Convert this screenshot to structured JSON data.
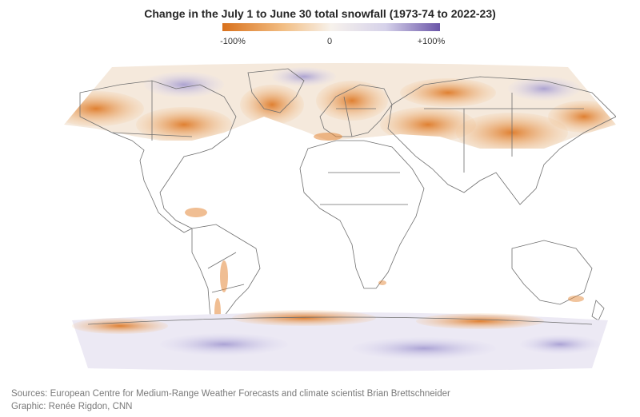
{
  "title": "Change in the July 1 to June 30 total snowfall (1973-74 to 2022-23)",
  "legend": {
    "min_label": "-100%",
    "mid_label": "0",
    "max_label": "+100%",
    "colors": [
      "#d9711c",
      "#f2be84",
      "#f7f2ec",
      "#d6d2ea",
      "#6a55a8"
    ]
  },
  "map": {
    "projection": "world (Robinson-like)",
    "decrease_color": "#e48a3a",
    "increase_color": "#b7b1dd",
    "neutral_color": "#f6f1ec",
    "border_color": "#7a7a7a"
  },
  "sources": "Sources: European Centre for Medium-Range Weather Forecasts and climate scientist Brian Brettschneider",
  "graphic": "Graphic: Renée Rigdon, CNN"
}
